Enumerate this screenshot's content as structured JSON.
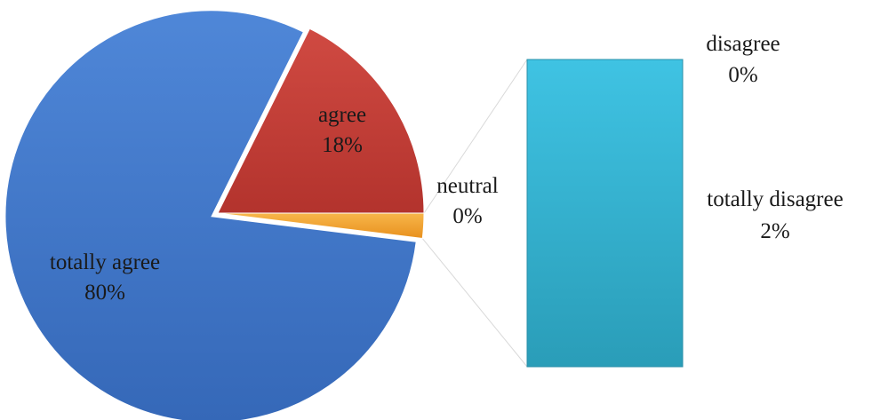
{
  "chart_data": {
    "type": "pie",
    "subtype": "bar-of-pie",
    "title": "",
    "slices": [
      {
        "label": "totally agree",
        "value": 80,
        "value_label": "80%",
        "color": "#3f76c9"
      },
      {
        "label": "agree",
        "value": 18,
        "value_label": "18%",
        "color": "#c23b34"
      },
      {
        "label": "neutral",
        "value": 0,
        "value_label": "0%",
        "color": "#f2a12a"
      }
    ],
    "bar_breakdown": [
      {
        "label": "disagree",
        "value": 0,
        "value_label": "0%",
        "color": "#2fa9c4"
      },
      {
        "label": "totally disagree",
        "value": 2,
        "value_label": "2%",
        "color": "#2fa9c4"
      }
    ],
    "legend": "none",
    "grid": false
  }
}
